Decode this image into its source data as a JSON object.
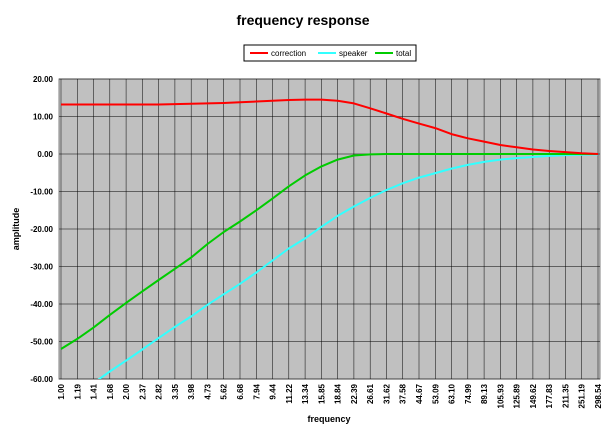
{
  "chart_data": {
    "type": "line",
    "title": "frequency response",
    "xlabel": "frequency",
    "ylabel": "amplitude",
    "ylim": [
      -60,
      20
    ],
    "y_ticks": [
      "20.00",
      "10.00",
      "0.00",
      "-10.00",
      "-20.00",
      "-30.00",
      "-40.00",
      "-50.00",
      "-60.00"
    ],
    "categories": [
      "1.00",
      "1.19",
      "1.41",
      "1.68",
      "2.00",
      "2.37",
      "2.82",
      "3.35",
      "3.98",
      "4.73",
      "5.62",
      "6.68",
      "7.94",
      "9.44",
      "11.22",
      "13.34",
      "15.85",
      "18.84",
      "22.39",
      "26.61",
      "31.62",
      "37.58",
      "44.67",
      "53.09",
      "63.10",
      "74.99",
      "89.13",
      "105.93",
      "125.89",
      "149.62",
      "177.83",
      "211.35",
      "251.19",
      "298.54"
    ],
    "grid": true,
    "legend_position": "top-center",
    "plot_background": "#c0c0c0",
    "series": [
      {
        "name": "correction",
        "color": "#ff0000",
        "values": [
          13.2,
          13.2,
          13.2,
          13.2,
          13.2,
          13.2,
          13.2,
          13.3,
          13.4,
          13.5,
          13.6,
          13.8,
          14.0,
          14.2,
          14.4,
          14.5,
          14.5,
          14.2,
          13.5,
          12.2,
          10.8,
          9.4,
          8.1,
          6.9,
          5.3,
          4.2,
          3.3,
          2.4,
          1.8,
          1.2,
          0.8,
          0.5,
          0.2,
          0.0
        ]
      },
      {
        "name": "speaker",
        "color": "#33ffff",
        "values": [
          -66.0,
          -63.7,
          -61.1,
          -58.0,
          -55.1,
          -52.1,
          -49.1,
          -46.1,
          -43.3,
          -40.2,
          -37.4,
          -34.6,
          -31.6,
          -28.4,
          -25.2,
          -22.5,
          -19.4,
          -16.5,
          -14.0,
          -11.7,
          -9.6,
          -7.8,
          -6.3,
          -5.1,
          -3.9,
          -2.9,
          -2.1,
          -1.5,
          -1.1,
          -0.8,
          -0.5,
          -0.3,
          -0.2,
          -0.1
        ]
      },
      {
        "name": "total",
        "color": "#00cc00",
        "values": [
          -52.0,
          -49.3,
          -46.3,
          -42.9,
          -39.7,
          -36.6,
          -33.6,
          -30.6,
          -27.6,
          -24.0,
          -20.8,
          -18.0,
          -15.0,
          -11.9,
          -8.6,
          -5.7,
          -3.3,
          -1.5,
          -0.4,
          -0.1,
          0.0,
          0.0,
          0.0,
          0.0,
          0.0,
          0.0,
          0.0,
          0.0,
          0.0,
          0.0,
          0.0,
          0.0,
          0.0,
          0.0
        ]
      }
    ]
  }
}
